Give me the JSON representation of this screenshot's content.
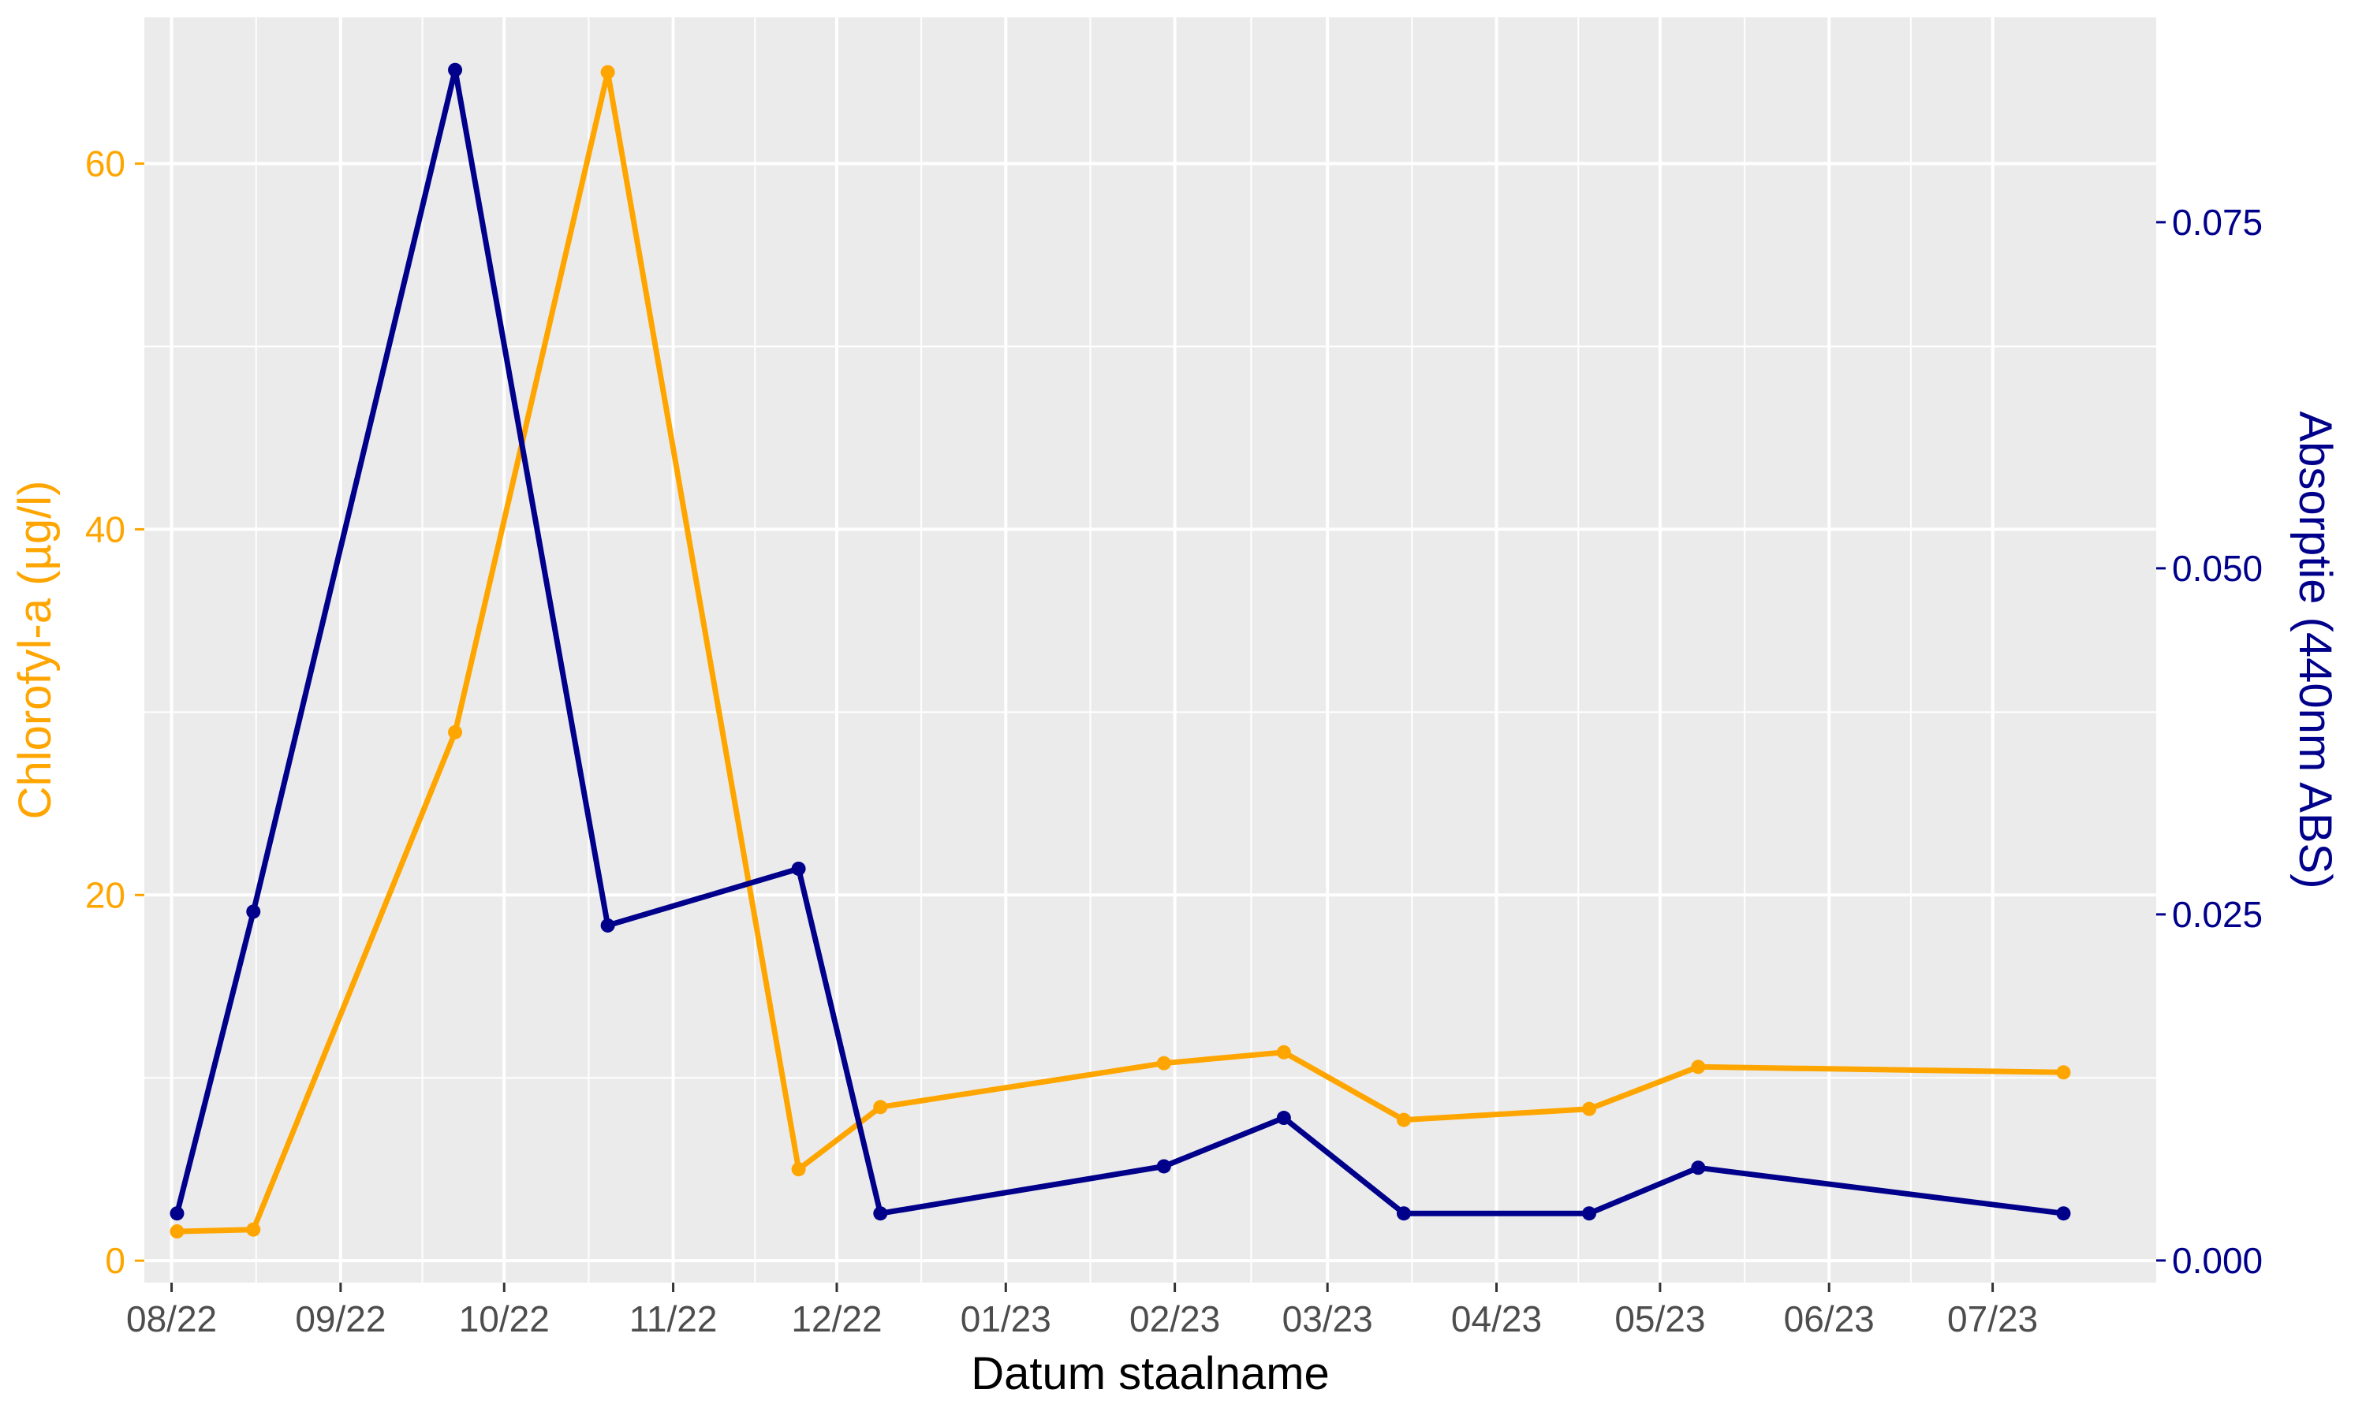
{
  "chart_data": {
    "type": "line",
    "xlabel": "Datum staalname",
    "y_left_label": "Chlorofyl-a (µg/l)",
    "y_right_label": "Absorptie (440nm ABS)",
    "colors": {
      "chlorophyll": "#FFA500",
      "absorption": "#00008B",
      "panel": "#EBEBEB",
      "grid": "#FFFFFF",
      "tick_text": "#4D4D4D",
      "title": "#000000"
    },
    "grid": true,
    "x_range": [
      "2022-07-27",
      "2023-07-31"
    ],
    "x_ticks": [
      {
        "date": "2022-08-01",
        "label": "08/22"
      },
      {
        "date": "2022-09-01",
        "label": "09/22"
      },
      {
        "date": "2022-10-01",
        "label": "10/22"
      },
      {
        "date": "2022-11-01",
        "label": "11/22"
      },
      {
        "date": "2022-12-01",
        "label": "12/22"
      },
      {
        "date": "2023-01-01",
        "label": "01/23"
      },
      {
        "date": "2023-02-01",
        "label": "02/23"
      },
      {
        "date": "2023-03-01",
        "label": "03/23"
      },
      {
        "date": "2023-04-01",
        "label": "04/23"
      },
      {
        "date": "2023-05-01",
        "label": "05/23"
      },
      {
        "date": "2023-06-01",
        "label": "06/23"
      },
      {
        "date": "2023-07-01",
        "label": "07/23"
      }
    ],
    "y_left": {
      "range": [
        -1.2,
        68
      ],
      "ticks": [
        0,
        20,
        40,
        60
      ],
      "tick_labels": [
        "0",
        "20",
        "40",
        "60"
      ]
    },
    "y_right": {
      "range": [
        -0.0016,
        0.0898
      ],
      "ticks": [
        0.0,
        0.025,
        0.05,
        0.075
      ],
      "tick_labels": [
        "0.000",
        "0.025",
        "0.050",
        "0.075"
      ]
    },
    "series": [
      {
        "key": "chlorophyll",
        "axis": "left",
        "x": [
          "2022-08-02",
          "2022-08-16",
          "2022-09-22",
          "2022-10-20",
          "2022-11-24",
          "2022-12-09",
          "2023-01-30",
          "2023-02-21",
          "2023-03-15",
          "2023-04-18",
          "2023-05-08",
          "2023-07-14"
        ],
        "values": [
          1.6,
          1.7,
          28.9,
          65.0,
          5.0,
          8.4,
          10.8,
          11.4,
          7.7,
          8.3,
          10.6,
          10.3
        ]
      },
      {
        "key": "absorption",
        "axis": "right",
        "x": [
          "2022-08-02",
          "2022-08-16",
          "2022-09-22",
          "2022-10-20",
          "2022-11-24",
          "2022-12-09",
          "2023-01-30",
          "2023-02-21",
          "2023-03-15",
          "2023-04-18",
          "2023-05-08",
          "2023-07-14"
        ],
        "values": [
          0.0034,
          0.0252,
          0.086,
          0.0242,
          0.0283,
          0.0034,
          0.0068,
          0.0103,
          0.0034,
          0.0034,
          0.0067,
          0.0034
        ]
      }
    ]
  }
}
